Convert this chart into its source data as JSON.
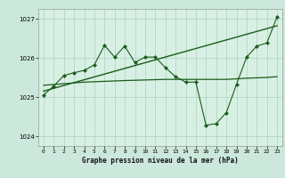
{
  "bg_color": "#cce8dc",
  "plot_bg_color": "#d8f0e4",
  "grid_color": "#b0d8c8",
  "line_color": "#1a5c1a",
  "xlabel": "Graphe pression niveau de la mer (hPa)",
  "ylim": [
    1023.75,
    1027.25
  ],
  "xlim": [
    -0.5,
    23.5
  ],
  "yticks": [
    1024,
    1025,
    1026,
    1027
  ],
  "xticks": [
    0,
    1,
    2,
    3,
    4,
    5,
    6,
    7,
    8,
    9,
    10,
    11,
    12,
    13,
    14,
    15,
    16,
    17,
    18,
    19,
    20,
    21,
    22,
    23
  ],
  "line1_x": [
    0,
    1,
    2,
    3,
    4,
    5,
    6,
    7,
    8,
    9,
    10,
    11,
    12,
    13,
    14,
    15,
    16,
    17,
    18,
    19,
    20,
    21,
    22,
    23
  ],
  "line1_y": [
    1025.05,
    1025.28,
    1025.55,
    1025.62,
    1025.68,
    1025.82,
    1026.32,
    1026.02,
    1026.3,
    1025.88,
    1026.02,
    1026.02,
    1025.75,
    1025.52,
    1025.38,
    1025.38,
    1024.28,
    1024.32,
    1024.6,
    1025.32,
    1026.02,
    1026.3,
    1026.38,
    1027.05
  ],
  "line2_x": [
    0,
    23
  ],
  "line2_y": [
    1025.15,
    1026.82
  ],
  "line3_x": [
    0,
    4,
    8,
    12,
    16,
    18,
    20,
    22,
    23
  ],
  "line3_y": [
    1025.3,
    1025.38,
    1025.42,
    1025.45,
    1025.45,
    1025.45,
    1025.48,
    1025.5,
    1025.52
  ]
}
